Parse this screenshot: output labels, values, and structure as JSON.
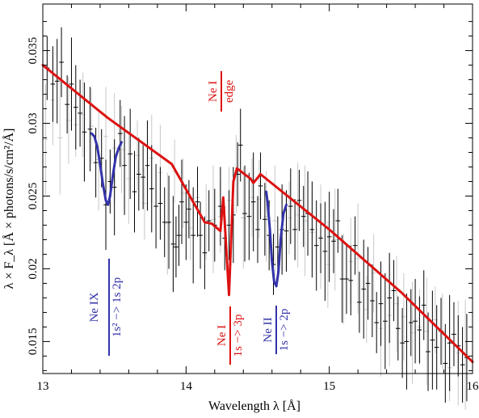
{
  "chart_data": {
    "type": "line",
    "xlabel": "Wavelength λ  [Å]",
    "ylabel": "λ × F_λ [Å × photons/s/cm²/Å]",
    "xlim": [
      13,
      16
    ],
    "ylim": [
      0.0128,
      0.0382
    ],
    "xticks": [
      13,
      14,
      15,
      16
    ],
    "xtick_labels": [
      "13",
      "14",
      "15",
      "16"
    ],
    "yticks": [
      0.015,
      0.02,
      0.025,
      0.03,
      0.035
    ],
    "ytick_labels": [
      "0.015",
      "0.02",
      "0.025",
      "0.03",
      "0.035"
    ],
    "grid": false,
    "colors": {
      "model_continuum": "#dd1111",
      "ne_ix_line": "#3333aa",
      "ne_ii_line": "#3333aa",
      "data_black": "#000000",
      "data_gray": "#c8c8c8"
    },
    "series": [
      {
        "key": "model",
        "x": [
          13.0,
          13.45,
          13.9,
          14.13,
          14.18,
          14.24,
          14.26,
          14.28,
          14.3,
          14.33,
          14.355,
          14.45,
          14.47,
          14.52,
          15.0,
          15.5,
          16.0
        ],
        "y": [
          0.034,
          0.0304,
          0.0272,
          0.0232,
          0.0231,
          0.0226,
          0.0249,
          0.0215,
          0.0182,
          0.026,
          0.0269,
          0.0262,
          0.0259,
          0.0265,
          0.0227,
          0.0184,
          0.0136
        ]
      },
      {
        "key": "ne_ix_line",
        "x": [
          13.34,
          13.36,
          13.38,
          13.4,
          13.42,
          13.44,
          13.455,
          13.47,
          13.49,
          13.51,
          13.53,
          13.55
        ],
        "y": [
          0.0293,
          0.0291,
          0.0284,
          0.0272,
          0.0258,
          0.0247,
          0.0244,
          0.025,
          0.0265,
          0.0277,
          0.0283,
          0.0287
        ]
      },
      {
        "key": "ne_ii_line",
        "x": [
          14.56,
          14.57,
          14.585,
          14.6,
          14.615,
          14.63,
          14.645,
          14.66,
          14.68,
          14.7
        ],
        "y": [
          0.0253,
          0.0245,
          0.0227,
          0.0205,
          0.0191,
          0.0188,
          0.0198,
          0.022,
          0.0238,
          0.0244
        ]
      }
    ],
    "data_points_black": [
      [
        13.03,
        0.0338,
        0.0022
      ],
      [
        13.07,
        0.0327,
        0.0026
      ],
      [
        13.1,
        0.0329,
        0.0029
      ],
      [
        13.13,
        0.0342,
        0.0024
      ],
      [
        13.17,
        0.0313,
        0.002
      ],
      [
        13.2,
        0.0327,
        0.0032
      ],
      [
        13.23,
        0.0311,
        0.0029
      ],
      [
        13.26,
        0.0307,
        0.0023
      ],
      [
        13.29,
        0.0294,
        0.0034
      ],
      [
        13.33,
        0.0296,
        0.0029
      ],
      [
        13.37,
        0.0273,
        0.0024
      ],
      [
        13.41,
        0.0276,
        0.002
      ],
      [
        13.44,
        0.0244,
        0.0031
      ],
      [
        13.47,
        0.026,
        0.0022
      ],
      [
        13.5,
        0.0256,
        0.0033
      ],
      [
        13.54,
        0.0293,
        0.0023
      ],
      [
        13.57,
        0.0271,
        0.0034
      ],
      [
        13.61,
        0.0279,
        0.0031
      ],
      [
        13.64,
        0.0253,
        0.0028
      ],
      [
        13.67,
        0.0265,
        0.0025
      ],
      [
        13.7,
        0.0263,
        0.0022
      ],
      [
        13.73,
        0.0271,
        0.0031
      ],
      [
        13.76,
        0.0255,
        0.003
      ],
      [
        13.79,
        0.0243,
        0.0029
      ],
      [
        13.82,
        0.0245,
        0.0025
      ],
      [
        13.85,
        0.0232,
        0.0024
      ],
      [
        13.88,
        0.0232,
        0.0032
      ],
      [
        13.91,
        0.0217,
        0.0033
      ],
      [
        13.93,
        0.0215,
        0.0021
      ],
      [
        13.95,
        0.0223,
        0.0021
      ],
      [
        13.97,
        0.0246,
        0.0029
      ],
      [
        14.0,
        0.0232,
        0.0026
      ],
      [
        14.02,
        0.0241,
        0.002
      ],
      [
        14.05,
        0.0223,
        0.0033
      ],
      [
        14.08,
        0.0246,
        0.0024
      ],
      [
        14.1,
        0.0223,
        0.0023
      ],
      [
        14.13,
        0.0211,
        0.0025
      ],
      [
        14.16,
        0.0233,
        0.0021
      ],
      [
        14.2,
        0.023,
        0.0025
      ],
      [
        14.24,
        0.0243,
        0.0027
      ],
      [
        14.27,
        0.0221,
        0.0022
      ],
      [
        14.3,
        0.023,
        0.0024
      ],
      [
        14.33,
        0.0237,
        0.0033
      ],
      [
        14.36,
        0.0265,
        0.0022
      ],
      [
        14.38,
        0.0285,
        0.0025
      ],
      [
        14.41,
        0.0238,
        0.0033
      ],
      [
        14.44,
        0.0236,
        0.003
      ],
      [
        14.47,
        0.0246,
        0.0034
      ],
      [
        14.5,
        0.0227,
        0.0023
      ],
      [
        14.52,
        0.0257,
        0.0023
      ],
      [
        14.55,
        0.0234,
        0.0025
      ],
      [
        14.58,
        0.0223,
        0.0024
      ],
      [
        14.61,
        0.0203,
        0.0021
      ],
      [
        14.64,
        0.0215,
        0.0021
      ],
      [
        14.67,
        0.0227,
        0.0031
      ],
      [
        14.7,
        0.0226,
        0.0028
      ],
      [
        14.73,
        0.0243,
        0.0026
      ],
      [
        14.76,
        0.0227,
        0.0021
      ],
      [
        14.79,
        0.0247,
        0.0021
      ],
      [
        14.82,
        0.0236,
        0.0021
      ],
      [
        14.85,
        0.0238,
        0.0029
      ],
      [
        14.88,
        0.0227,
        0.0033
      ],
      [
        14.91,
        0.0216,
        0.0031
      ],
      [
        14.94,
        0.0221,
        0.0024
      ],
      [
        14.97,
        0.0212,
        0.0034
      ],
      [
        15.0,
        0.0222,
        0.0031
      ],
      [
        15.03,
        0.0219,
        0.0022
      ],
      [
        15.06,
        0.0233,
        0.0022
      ],
      [
        15.09,
        0.0193,
        0.003
      ],
      [
        15.12,
        0.0193,
        0.0024
      ],
      [
        15.15,
        0.0192,
        0.0024
      ],
      [
        15.18,
        0.0216,
        0.002
      ],
      [
        15.21,
        0.0177,
        0.0021
      ],
      [
        15.24,
        0.0186,
        0.0034
      ],
      [
        15.27,
        0.019,
        0.0025
      ],
      [
        15.3,
        0.0178,
        0.0025
      ],
      [
        15.33,
        0.0163,
        0.0021
      ],
      [
        15.36,
        0.0176,
        0.0029
      ],
      [
        15.39,
        0.0164,
        0.0033
      ],
      [
        15.42,
        0.018,
        0.0031
      ],
      [
        15.45,
        0.0185,
        0.0021
      ],
      [
        15.48,
        0.0159,
        0.0022
      ],
      [
        15.51,
        0.0149,
        0.0024
      ],
      [
        15.54,
        0.015,
        0.0033
      ],
      [
        15.57,
        0.0163,
        0.0023
      ],
      [
        15.6,
        0.0164,
        0.0029
      ],
      [
        15.63,
        0.0158,
        0.0023
      ],
      [
        15.66,
        0.0175,
        0.0024
      ],
      [
        15.69,
        0.0143,
        0.0027
      ],
      [
        15.72,
        0.0151,
        0.0034
      ],
      [
        15.75,
        0.0146,
        0.0029
      ],
      [
        15.78,
        0.0157,
        0.0023
      ],
      [
        15.81,
        0.0135,
        0.0027
      ],
      [
        15.84,
        0.0149,
        0.0033
      ],
      [
        15.87,
        0.0155,
        0.0022
      ],
      [
        15.9,
        0.0147,
        0.0021
      ],
      [
        15.93,
        0.0134,
        0.0026
      ],
      [
        15.96,
        0.0139,
        0.003
      ]
    ],
    "data_points_gray": [
      [
        13.02,
        0.0289,
        0.0038
      ],
      [
        13.07,
        0.0316,
        0.0031
      ],
      [
        13.12,
        0.029,
        0.0039
      ],
      [
        13.18,
        0.0302,
        0.003
      ],
      [
        13.23,
        0.0299,
        0.0022
      ],
      [
        13.28,
        0.0306,
        0.0029
      ],
      [
        13.34,
        0.0298,
        0.0026
      ],
      [
        13.39,
        0.0275,
        0.0035
      ],
      [
        13.44,
        0.0291,
        0.0034
      ],
      [
        13.5,
        0.0283,
        0.0038
      ],
      [
        13.55,
        0.0282,
        0.003
      ],
      [
        13.6,
        0.0262,
        0.0031
      ],
      [
        13.66,
        0.0278,
        0.0024
      ],
      [
        13.71,
        0.0245,
        0.0025
      ],
      [
        13.76,
        0.0276,
        0.003
      ],
      [
        13.82,
        0.0266,
        0.0033
      ],
      [
        13.87,
        0.0231,
        0.0035
      ],
      [
        13.92,
        0.0267,
        0.0022
      ],
      [
        13.98,
        0.0252,
        0.0024
      ],
      [
        14.03,
        0.0228,
        0.0022
      ],
      [
        14.08,
        0.0249,
        0.0022
      ],
      [
        14.14,
        0.0232,
        0.0026
      ],
      [
        14.19,
        0.0234,
        0.0037
      ],
      [
        14.24,
        0.0236,
        0.0025
      ],
      [
        14.3,
        0.0247,
        0.0023
      ],
      [
        14.35,
        0.0265,
        0.0027
      ],
      [
        14.4,
        0.0235,
        0.0035
      ],
      [
        14.46,
        0.0249,
        0.0027
      ],
      [
        14.51,
        0.0248,
        0.0027
      ],
      [
        14.56,
        0.0236,
        0.0031
      ],
      [
        14.62,
        0.0233,
        0.0038
      ],
      [
        14.67,
        0.0224,
        0.0027
      ],
      [
        14.72,
        0.0235,
        0.0025
      ],
      [
        14.78,
        0.0237,
        0.0036
      ],
      [
        14.83,
        0.0233,
        0.0038
      ],
      [
        14.88,
        0.0225,
        0.0026
      ],
      [
        14.94,
        0.0222,
        0.0036
      ],
      [
        14.99,
        0.0203,
        0.003
      ],
      [
        15.04,
        0.022,
        0.0035
      ],
      [
        15.1,
        0.0193,
        0.0031
      ],
      [
        15.15,
        0.0205,
        0.003
      ],
      [
        15.2,
        0.0207,
        0.0038
      ],
      [
        15.26,
        0.0172,
        0.0023
      ],
      [
        15.31,
        0.0197,
        0.0027
      ],
      [
        15.36,
        0.0159,
        0.0033
      ],
      [
        15.42,
        0.0168,
        0.0035
      ],
      [
        15.47,
        0.0176,
        0.0033
      ],
      [
        15.52,
        0.0167,
        0.003
      ],
      [
        15.58,
        0.0156,
        0.0035
      ],
      [
        15.63,
        0.016,
        0.0026
      ],
      [
        15.68,
        0.0157,
        0.0037
      ],
      [
        15.74,
        0.0165,
        0.0023
      ],
      [
        15.79,
        0.0157,
        0.0026
      ],
      [
        15.84,
        0.0132,
        0.0023
      ],
      [
        15.9,
        0.0142,
        0.0036
      ],
      [
        15.95,
        0.0141,
        0.0038
      ]
    ],
    "annotations": {
      "ne_i_edge": {
        "line1": "Ne I",
        "line2": "edge",
        "color": "#dd1111"
      },
      "ne_ix": {
        "line1": "Ne IX",
        "line2": "1s² −> 1s 2p",
        "color": "#3333aa"
      },
      "ne_i_1s3p": {
        "line1": "Ne I",
        "line2": "1s −> 3p",
        "color": "#dd1111"
      },
      "ne_ii": {
        "line1": "Ne II",
        "line2": "1s −> 2p",
        "color": "#3333aa"
      }
    }
  }
}
